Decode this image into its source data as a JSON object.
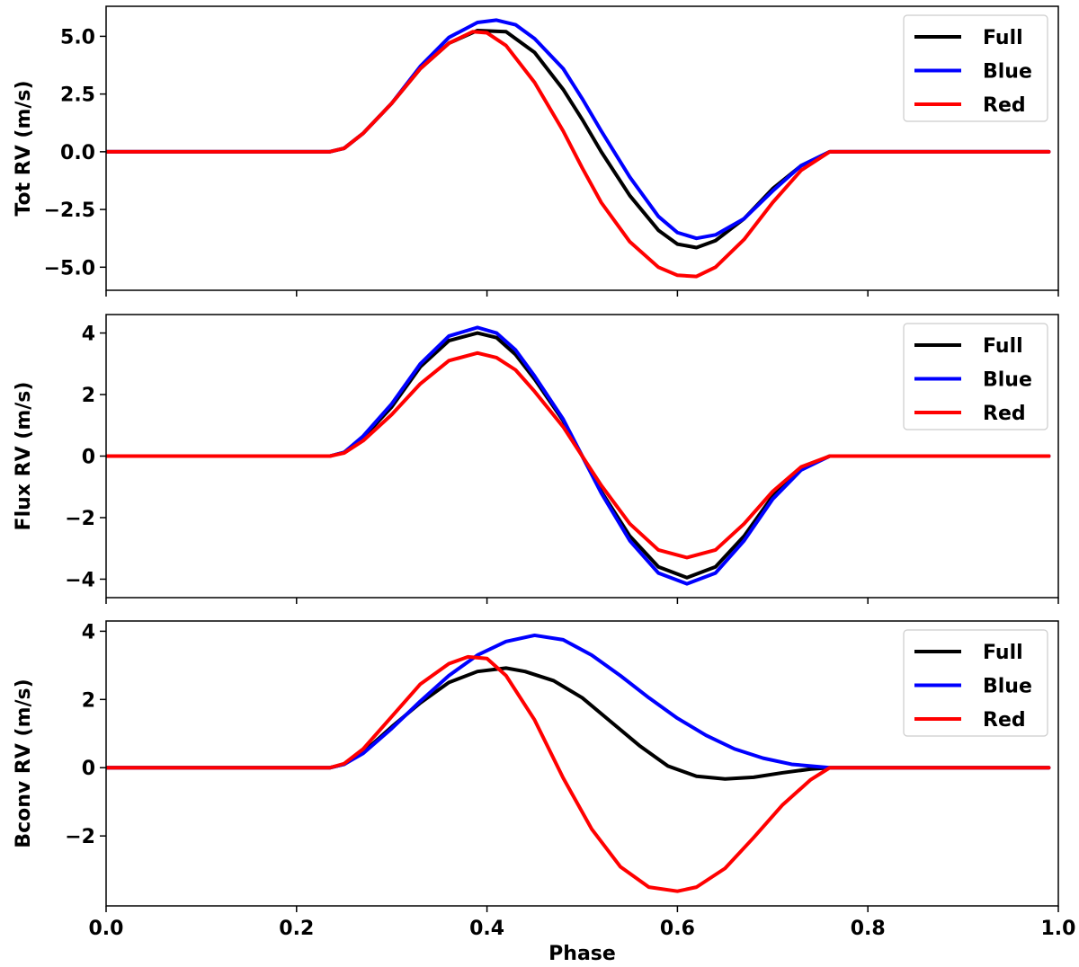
{
  "chart_data": [
    {
      "type": "line",
      "ylabel": "Tot RV (m/s)",
      "xlim": [
        0.0,
        1.0
      ],
      "ylim": [
        -6.0,
        6.3
      ],
      "yticks": [
        5.0,
        2.5,
        0.0,
        -2.5,
        -5.0
      ],
      "ytick_labels": [
        "5.0",
        "2.5",
        "0.0",
        "−2.5",
        "−5.0"
      ],
      "legend_loc": "top-right",
      "series": [
        {
          "name": "Full",
          "color": "#000000",
          "x": [
            0,
            0.2,
            0.235,
            0.25,
            0.27,
            0.3,
            0.33,
            0.36,
            0.39,
            0.42,
            0.45,
            0.48,
            0.5,
            0.52,
            0.55,
            0.58,
            0.6,
            0.62,
            0.64,
            0.67,
            0.7,
            0.73,
            0.76,
            0.8,
            0.99
          ],
          "y": [
            0,
            0,
            0,
            0.15,
            0.8,
            2.1,
            3.6,
            4.7,
            5.25,
            5.2,
            4.3,
            2.7,
            1.4,
            0.0,
            -1.9,
            -3.4,
            -4.0,
            -4.15,
            -3.85,
            -2.9,
            -1.6,
            -0.6,
            0,
            0,
            0
          ]
        },
        {
          "name": "Blue",
          "color": "#0000ff",
          "x": [
            0,
            0.2,
            0.235,
            0.25,
            0.27,
            0.3,
            0.33,
            0.36,
            0.39,
            0.41,
            0.43,
            0.45,
            0.48,
            0.5,
            0.52,
            0.55,
            0.58,
            0.6,
            0.62,
            0.64,
            0.67,
            0.7,
            0.73,
            0.76,
            0.8,
            0.99
          ],
          "y": [
            0,
            0,
            0,
            0.15,
            0.8,
            2.1,
            3.7,
            4.95,
            5.6,
            5.7,
            5.5,
            4.9,
            3.6,
            2.3,
            0.9,
            -1.1,
            -2.8,
            -3.5,
            -3.75,
            -3.6,
            -2.9,
            -1.7,
            -0.6,
            0,
            0,
            0
          ]
        },
        {
          "name": "Red",
          "color": "#ff0000",
          "x": [
            0,
            0.2,
            0.235,
            0.25,
            0.27,
            0.3,
            0.33,
            0.36,
            0.385,
            0.4,
            0.42,
            0.45,
            0.48,
            0.5,
            0.52,
            0.55,
            0.58,
            0.6,
            0.62,
            0.64,
            0.67,
            0.7,
            0.73,
            0.76,
            0.8,
            0.99
          ],
          "y": [
            0,
            0,
            0,
            0.15,
            0.8,
            2.1,
            3.6,
            4.7,
            5.2,
            5.15,
            4.6,
            3.0,
            0.9,
            -0.7,
            -2.2,
            -3.9,
            -5.0,
            -5.35,
            -5.4,
            -5.0,
            -3.8,
            -2.2,
            -0.8,
            0,
            0,
            0
          ]
        }
      ]
    },
    {
      "type": "line",
      "ylabel": "Flux RV (m/s)",
      "xlim": [
        0.0,
        1.0
      ],
      "ylim": [
        -4.6,
        4.6
      ],
      "yticks": [
        4,
        2,
        0,
        -2,
        -4
      ],
      "ytick_labels": [
        "4",
        "2",
        "0",
        "−2",
        "−4"
      ],
      "legend_loc": "top-right",
      "series": [
        {
          "name": "Full",
          "color": "#000000",
          "x": [
            0,
            0.2,
            0.235,
            0.25,
            0.27,
            0.3,
            0.33,
            0.36,
            0.39,
            0.41,
            0.43,
            0.45,
            0.48,
            0.5,
            0.52,
            0.55,
            0.58,
            0.61,
            0.64,
            0.67,
            0.7,
            0.73,
            0.76,
            0.8,
            0.99
          ],
          "y": [
            0,
            0,
            0,
            0.12,
            0.6,
            1.6,
            2.9,
            3.75,
            4.0,
            3.85,
            3.3,
            2.5,
            1.15,
            0.0,
            -1.15,
            -2.6,
            -3.6,
            -3.95,
            -3.6,
            -2.6,
            -1.3,
            -0.4,
            0,
            0,
            0
          ]
        },
        {
          "name": "Blue",
          "color": "#0000ff",
          "x": [
            0,
            0.2,
            0.235,
            0.25,
            0.27,
            0.3,
            0.33,
            0.36,
            0.39,
            0.41,
            0.43,
            0.45,
            0.48,
            0.5,
            0.52,
            0.55,
            0.58,
            0.61,
            0.64,
            0.67,
            0.7,
            0.73,
            0.76,
            0.8,
            0.99
          ],
          "y": [
            0,
            0,
            0,
            0.12,
            0.65,
            1.7,
            3.0,
            3.9,
            4.18,
            4.0,
            3.45,
            2.6,
            1.2,
            0.0,
            -1.2,
            -2.75,
            -3.8,
            -4.15,
            -3.8,
            -2.75,
            -1.4,
            -0.45,
            0,
            0,
            0
          ]
        },
        {
          "name": "Red",
          "color": "#ff0000",
          "x": [
            0,
            0.2,
            0.235,
            0.25,
            0.27,
            0.3,
            0.33,
            0.36,
            0.39,
            0.41,
            0.43,
            0.45,
            0.48,
            0.5,
            0.52,
            0.55,
            0.58,
            0.61,
            0.64,
            0.67,
            0.7,
            0.73,
            0.76,
            0.8,
            0.99
          ],
          "y": [
            0,
            0,
            0,
            0.1,
            0.5,
            1.35,
            2.35,
            3.1,
            3.35,
            3.2,
            2.8,
            2.1,
            0.95,
            0.0,
            -0.95,
            -2.2,
            -3.05,
            -3.3,
            -3.05,
            -2.2,
            -1.15,
            -0.35,
            0,
            0,
            0
          ]
        }
      ]
    },
    {
      "type": "line",
      "xlabel": "Phase",
      "ylabel": "Bconv RV (m/s)",
      "xlim": [
        0.0,
        1.0
      ],
      "ylim": [
        -4.05,
        4.3
      ],
      "xticks": [
        0.0,
        0.2,
        0.4,
        0.6,
        0.8,
        1.0
      ],
      "xtick_labels": [
        "0.0",
        "0.2",
        "0.4",
        "0.6",
        "0.8",
        "1.0"
      ],
      "yticks": [
        4,
        2,
        0,
        -2
      ],
      "ytick_labels": [
        "4",
        "2",
        "0",
        "−2"
      ],
      "legend_loc": "top-right",
      "series": [
        {
          "name": "Full",
          "color": "#000000",
          "x": [
            0,
            0.2,
            0.235,
            0.25,
            0.27,
            0.3,
            0.33,
            0.36,
            0.39,
            0.42,
            0.44,
            0.47,
            0.5,
            0.53,
            0.56,
            0.59,
            0.62,
            0.65,
            0.68,
            0.71,
            0.74,
            0.76,
            0.8,
            0.99
          ],
          "y": [
            0,
            0,
            0,
            0.1,
            0.45,
            1.2,
            1.9,
            2.5,
            2.82,
            2.92,
            2.82,
            2.55,
            2.05,
            1.35,
            0.65,
            0.05,
            -0.25,
            -0.33,
            -0.28,
            -0.15,
            -0.04,
            0,
            0,
            0
          ]
        },
        {
          "name": "Blue",
          "color": "#0000ff",
          "x": [
            0,
            0.2,
            0.235,
            0.25,
            0.27,
            0.3,
            0.33,
            0.36,
            0.39,
            0.42,
            0.45,
            0.48,
            0.51,
            0.54,
            0.57,
            0.6,
            0.63,
            0.66,
            0.69,
            0.72,
            0.76,
            0.8,
            0.99
          ],
          "y": [
            0,
            0,
            0,
            0.1,
            0.42,
            1.15,
            1.95,
            2.7,
            3.3,
            3.7,
            3.88,
            3.75,
            3.3,
            2.7,
            2.05,
            1.45,
            0.95,
            0.55,
            0.28,
            0.1,
            0,
            0,
            0
          ]
        },
        {
          "name": "Red",
          "color": "#ff0000",
          "x": [
            0,
            0.2,
            0.235,
            0.25,
            0.27,
            0.3,
            0.33,
            0.36,
            0.38,
            0.4,
            0.42,
            0.45,
            0.48,
            0.51,
            0.54,
            0.57,
            0.6,
            0.62,
            0.65,
            0.68,
            0.71,
            0.74,
            0.76,
            0.8,
            0.99
          ],
          "y": [
            0,
            0,
            0,
            0.12,
            0.55,
            1.5,
            2.45,
            3.05,
            3.25,
            3.2,
            2.7,
            1.4,
            -0.3,
            -1.8,
            -2.9,
            -3.5,
            -3.62,
            -3.5,
            -2.95,
            -2.05,
            -1.1,
            -0.35,
            0,
            0,
            0
          ]
        }
      ]
    }
  ]
}
